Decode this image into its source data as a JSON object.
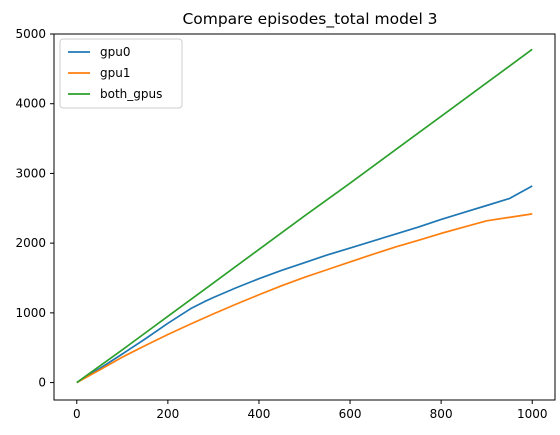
{
  "chart_data": {
    "type": "line",
    "title": "Compare episodes_total model 3",
    "xlabel": "",
    "ylabel": "",
    "xlim": [
      -50,
      1050
    ],
    "ylim": [
      -250,
      5000
    ],
    "xticks": [
      0,
      200,
      400,
      600,
      800,
      1000
    ],
    "yticks": [
      0,
      1000,
      2000,
      3000,
      4000,
      5000
    ],
    "grid": false,
    "legend_position": "top-left",
    "series": [
      {
        "name": "gpu0",
        "color": "#1f77b4",
        "x": [
          0,
          50,
          100,
          150,
          200,
          250,
          280,
          300,
          350,
          400,
          450,
          500,
          550,
          600,
          650,
          700,
          750,
          800,
          850,
          900,
          950,
          1000
        ],
        "y": [
          0,
          200,
          410,
          625,
          850,
          1060,
          1160,
          1220,
          1360,
          1490,
          1610,
          1720,
          1830,
          1930,
          2030,
          2130,
          2230,
          2340,
          2440,
          2540,
          2640,
          2820
        ]
      },
      {
        "name": "gpu1",
        "color": "#ff7f0e",
        "x": [
          0,
          50,
          100,
          150,
          200,
          250,
          300,
          350,
          400,
          450,
          500,
          550,
          600,
          650,
          700,
          750,
          800,
          850,
          900,
          950,
          1000
        ],
        "y": [
          0,
          180,
          365,
          530,
          690,
          840,
          985,
          1125,
          1260,
          1390,
          1510,
          1620,
          1730,
          1840,
          1945,
          2040,
          2140,
          2230,
          2320,
          2370,
          2420
        ]
      },
      {
        "name": "both_gpus",
        "color": "#2ca02c",
        "x": [
          0,
          100,
          200,
          300,
          400,
          500,
          600,
          700,
          800,
          900,
          1000
        ],
        "y": [
          0,
          470,
          950,
          1430,
          1910,
          2390,
          2860,
          3340,
          3820,
          4300,
          4780
        ]
      }
    ]
  }
}
